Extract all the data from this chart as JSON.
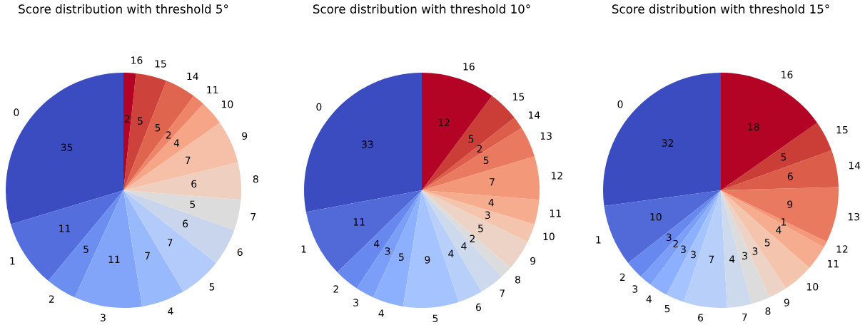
{
  "chart_data": [
    {
      "type": "pie",
      "title": "Score distribution with threshold 5°",
      "data_labels": true,
      "categories": [
        "0",
        "1",
        "2",
        "3",
        "4",
        "5",
        "6",
        "7",
        "8",
        "9",
        "10",
        "11",
        "14",
        "15",
        "16"
      ],
      "values": [
        35,
        11,
        5,
        11,
        7,
        7,
        6,
        5,
        6,
        7,
        4,
        2,
        5,
        5,
        2
      ],
      "colors": [
        "#3b4cc0",
        "#546ede",
        "#6c8ef0",
        "#82a5f9",
        "#99b9fd",
        "#b2cbfa",
        "#c8d5ec",
        "#dddcdc",
        "#efcfbf",
        "#f5c0a7",
        "#f6a586",
        "#ee8468",
        "#e0654f",
        "#cd423b",
        "#b40426"
      ]
    },
    {
      "type": "pie",
      "title": "Score distribution with threshold 10°",
      "data_labels": true,
      "categories": [
        "0",
        "1",
        "2",
        "3",
        "4",
        "5",
        "6",
        "7",
        "8",
        "9",
        "10",
        "11",
        "12",
        "13",
        "14",
        "15",
        "16"
      ],
      "values": [
        33,
        11,
        4,
        3,
        5,
        9,
        4,
        4,
        2,
        5,
        3,
        4,
        7,
        5,
        2,
        5,
        12
      ],
      "colors": [
        "#3b4cc0",
        "#516ad7",
        "#6788ee",
        "#7b9ff9",
        "#8db0fe",
        "#a5c3fe",
        "#b7cff9",
        "#cdd9ec",
        "#dddcdc",
        "#ecd3c5",
        "#f5c4ac",
        "#f6ad8f",
        "#f4987a",
        "#e97a5f",
        "#dc5d4a",
        "#cb3e38",
        "#b40426"
      ]
    },
    {
      "type": "pie",
      "title": "Score distribution with threshold 15°",
      "data_labels": true,
      "categories": [
        "0",
        "1",
        "2",
        "3",
        "4",
        "5",
        "6",
        "7",
        "8",
        "9",
        "10",
        "11",
        "12",
        "13",
        "14",
        "15",
        "16"
      ],
      "values": [
        32,
        10,
        3,
        2,
        3,
        3,
        7,
        4,
        3,
        3,
        5,
        4,
        1,
        9,
        6,
        5,
        18
      ],
      "colors": [
        "#3b4cc0",
        "#516ad7",
        "#6788ee",
        "#7b9ff9",
        "#8db0fe",
        "#a5c3fe",
        "#b7cff9",
        "#cdd9ec",
        "#dddcdc",
        "#ecd3c5",
        "#f5c4ac",
        "#f6ad8f",
        "#f4987a",
        "#e97a5f",
        "#dc5d4a",
        "#cb3e38",
        "#b40426"
      ]
    }
  ]
}
